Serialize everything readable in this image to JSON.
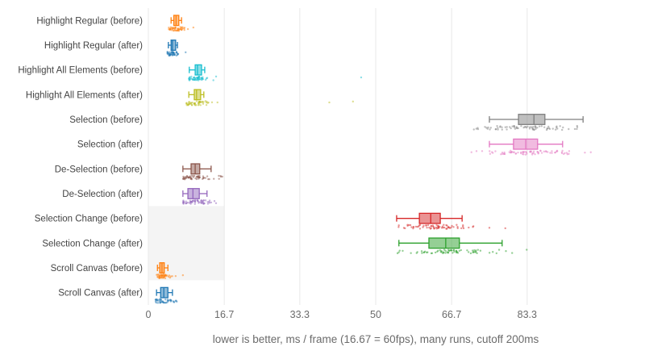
{
  "chart_data": {
    "type": "box",
    "orientation": "horizontal",
    "title": "",
    "xlabel": "lower is better, ms / frame (16.67 = 60fps), many runs, cutoff 200ms",
    "ylabel": "",
    "x_ticks": [
      "0",
      "16.7",
      "33.3",
      "50",
      "66.7",
      "83.3"
    ],
    "x_tick_values": [
      0,
      16.7,
      33.3,
      50,
      66.7,
      83.3
    ],
    "x_range": [
      0,
      100
    ],
    "grid": true,
    "legend": "none",
    "rows": [
      {
        "label": "Highlight Regular (before)",
        "color": "#ff7f0e",
        "stats": {
          "low": 5.0,
          "q1": 5.6,
          "med": 6.1,
          "q3": 6.7,
          "high": 7.3
        },
        "points_range": [
          4.5,
          8.0
        ],
        "outliers": [
          8.7,
          9.9
        ],
        "n": 45,
        "seed": 1
      },
      {
        "label": "Highlight Regular (after)",
        "color": "#1f77b4",
        "stats": {
          "low": 4.4,
          "q1": 5.0,
          "med": 5.3,
          "q3": 6.0,
          "high": 6.4
        },
        "points_range": [
          4.2,
          7.0
        ],
        "outliers": [
          8.2
        ],
        "n": 45,
        "seed": 2
      },
      {
        "label": "Highlight All Elements (before)",
        "color": "#17becf",
        "stats": {
          "low": 9.0,
          "q1": 10.3,
          "med": 10.8,
          "q3": 11.7,
          "high": 12.4
        },
        "points_range": [
          8.7,
          13.5
        ],
        "outliers": [
          14.3,
          14.9,
          46.8
        ],
        "n": 50,
        "seed": 3
      },
      {
        "label": "Highlight All Elements (after)",
        "color": "#bcbd22",
        "stats": {
          "low": 8.9,
          "q1": 10.1,
          "med": 10.6,
          "q3": 11.5,
          "high": 12.2
        },
        "points_range": [
          8.4,
          13.3
        ],
        "outliers": [
          14.0,
          15.2,
          39.8,
          45.0
        ],
        "n": 50,
        "seed": 4
      },
      {
        "label": "Selection (before)",
        "color": "#7f7f7f",
        "stats": {
          "low": 75.0,
          "q1": 81.4,
          "med": 84.8,
          "q3": 87.2,
          "high": 95.6
        },
        "points_range": [
          70.6,
          95.6
        ],
        "outliers": [],
        "n": 75,
        "seed": 5
      },
      {
        "label": "Selection (after)",
        "color": "#e377c2",
        "stats": {
          "low": 75.0,
          "q1": 80.3,
          "med": 83.0,
          "q3": 85.6,
          "high": 91.1
        },
        "points_range": [
          70.7,
          93.0
        ],
        "outliers": [
          96.0,
          97.3
        ],
        "n": 75,
        "seed": 6
      },
      {
        "label": "De-Selection (before)",
        "color": "#8c564b",
        "stats": {
          "low": 7.6,
          "q1": 9.4,
          "med": 10.3,
          "q3": 11.3,
          "high": 13.8
        },
        "points_range": [
          7.7,
          16.6
        ],
        "outliers": [],
        "n": 60,
        "seed": 7
      },
      {
        "label": "De-Selection (after)",
        "color": "#9467bd",
        "stats": {
          "low": 7.6,
          "q1": 8.7,
          "med": 9.8,
          "q3": 11.2,
          "high": 12.9
        },
        "points_range": [
          7.7,
          15.5
        ],
        "outliers": [],
        "n": 60,
        "seed": 8
      },
      {
        "label": "Selection Change (before)",
        "color": "#d62728",
        "stats": {
          "low": 54.6,
          "q1": 59.6,
          "med": 62.1,
          "q3": 64.2,
          "high": 69.0
        },
        "points_range": [
          54.5,
          72.0
        ],
        "outliers": [
          75.0,
          78.5
        ],
        "n": 70,
        "seed": 9
      },
      {
        "label": "Selection Change (after)",
        "color": "#2ca02c",
        "stats": {
          "low": 55.1,
          "q1": 61.7,
          "med": 65.4,
          "q3": 68.4,
          "high": 77.8
        },
        "points_range": [
          54.8,
          80.0
        ],
        "outliers": [
          83.2
        ],
        "n": 70,
        "seed": 10
      },
      {
        "label": "Scroll Canvas (before)",
        "color": "#ff7f0e",
        "stats": {
          "low": 2.0,
          "q1": 2.5,
          "med": 3.0,
          "q3": 3.5,
          "high": 4.3
        },
        "points_range": [
          1.6,
          5.5
        ],
        "outliers": [
          6.0,
          7.6
        ],
        "n": 45,
        "seed": 11
      },
      {
        "label": "Scroll Canvas (after)",
        "color": "#1f77b4",
        "stats": {
          "low": 1.8,
          "q1": 2.7,
          "med": 3.4,
          "q3": 4.3,
          "high": 5.3
        },
        "points_range": [
          1.6,
          6.4
        ],
        "outliers": [],
        "n": 45,
        "seed": 12
      }
    ],
    "highlight_band": {
      "x0": 0,
      "x1": 16.7,
      "first_row": "Selection Change (before)",
      "last_row": "Scroll Canvas (before)"
    },
    "colors": {
      "background": "#ffffff",
      "grid": "#ececec",
      "band": "#f4f4f4",
      "tick_label": "#6b6b6b",
      "category_label": "#444444",
      "axis_title": "#6b6b6b"
    }
  }
}
